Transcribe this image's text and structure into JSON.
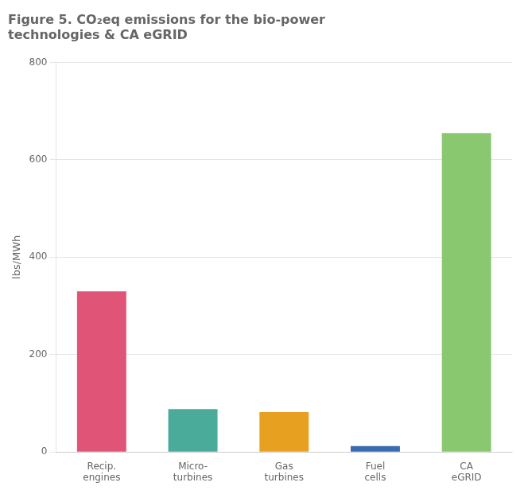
{
  "chart_data": {
    "type": "bar",
    "title": [
      "Figure 5. CO₂eq emissions for the bio-power",
      "technologies & CA eGRID"
    ],
    "ylabel": "lbs/MWh",
    "categories": [
      "Recip.\nengines",
      "Micro-\nturbines",
      "Gas\nturbines",
      "Fuel\ncells",
      "CA\neGRID"
    ],
    "values": [
      330,
      88,
      82,
      12,
      655
    ],
    "colors": [
      "#e05577",
      "#4aab9a",
      "#e8a020",
      "#3a6ab0",
      "#8ac870"
    ],
    "ylim": [
      0,
      800
    ],
    "yticks": [
      0,
      200,
      400,
      600,
      800
    ],
    "grid": true
  }
}
